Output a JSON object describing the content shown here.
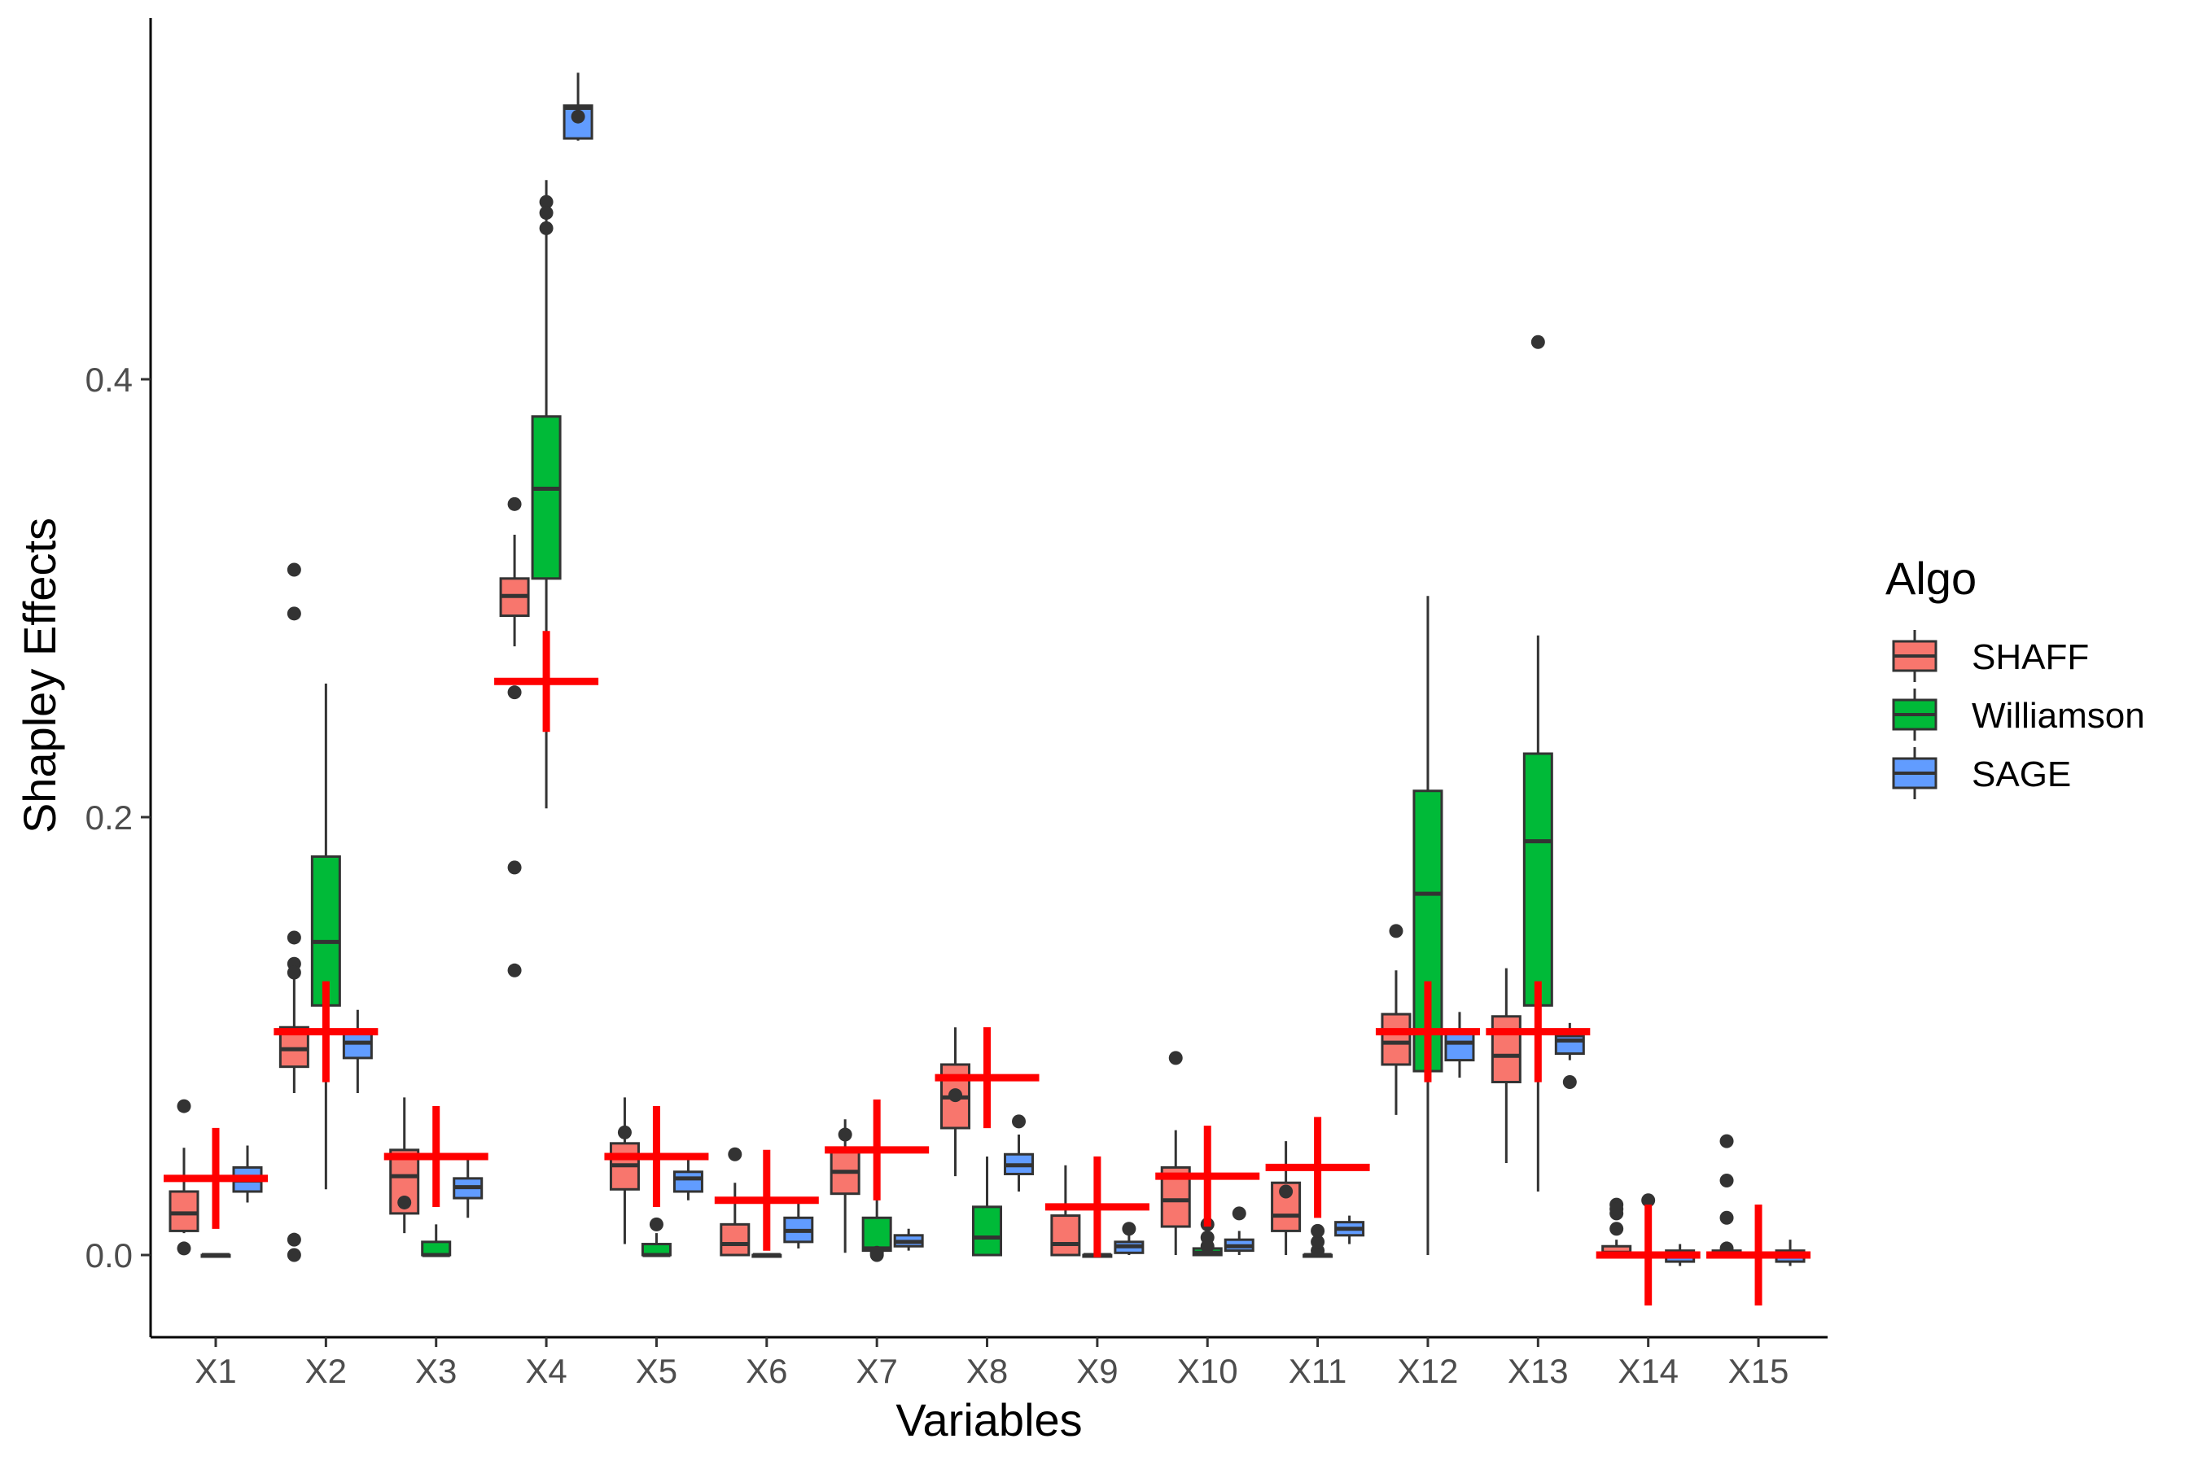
{
  "chart_data": {
    "type": "boxplot",
    "xlabel": "Variables",
    "ylabel": "Shapley Effects",
    "ylim": [
      -0.037,
      0.565
    ],
    "yticks": [
      0.0,
      0.2,
      0.4
    ],
    "ytick_labels": [
      "0.0",
      "0.2",
      "0.4"
    ],
    "categories": [
      "X1",
      "X2",
      "X3",
      "X4",
      "X5",
      "X6",
      "X7",
      "X8",
      "X9",
      "X10",
      "X11",
      "X12",
      "X13",
      "X14",
      "X15"
    ],
    "legend": {
      "title": "Algo",
      "placement": "right"
    },
    "grid": false,
    "series": [
      {
        "name": "SHAFF",
        "color": "#F8766D",
        "boxes": [
          {
            "low": 0.01,
            "q1": 0.011,
            "median": 0.019,
            "q3": 0.029,
            "high": 0.049,
            "outliers": [
              0.068,
              0.003
            ]
          },
          {
            "low": 0.074,
            "q1": 0.086,
            "median": 0.094,
            "q3": 0.104,
            "high": 0.13,
            "outliers": [
              0.145,
              0.133,
              0.129,
              0.293,
              0.313,
              0.0,
              0.007
            ]
          },
          {
            "low": 0.01,
            "q1": 0.019,
            "median": 0.036,
            "q3": 0.048,
            "high": 0.072,
            "outliers": [
              0.024
            ]
          },
          {
            "low": 0.278,
            "q1": 0.292,
            "median": 0.301,
            "q3": 0.309,
            "high": 0.329,
            "outliers": [
              0.343,
              0.257,
              0.177,
              0.13
            ]
          },
          {
            "low": 0.005,
            "q1": 0.03,
            "median": 0.041,
            "q3": 0.051,
            "high": 0.072,
            "outliers": [
              0.056
            ]
          },
          {
            "low": 0.0,
            "q1": 0.0,
            "median": 0.005,
            "q3": 0.014,
            "high": 0.033,
            "outliers": [
              0.046
            ]
          },
          {
            "low": 0.001,
            "q1": 0.028,
            "median": 0.038,
            "q3": 0.048,
            "high": 0.062,
            "outliers": [
              0.055
            ]
          },
          {
            "low": 0.036,
            "q1": 0.058,
            "median": 0.072,
            "q3": 0.087,
            "high": 0.104,
            "outliers": [
              0.073
            ]
          },
          {
            "low": 0.0,
            "q1": 0.0,
            "median": 0.005,
            "q3": 0.018,
            "high": 0.041,
            "outliers": []
          },
          {
            "low": 0.0,
            "q1": 0.013,
            "median": 0.025,
            "q3": 0.04,
            "high": 0.057,
            "outliers": [
              0.09
            ]
          },
          {
            "low": 0.0,
            "q1": 0.011,
            "median": 0.018,
            "q3": 0.033,
            "high": 0.052,
            "outliers": [
              0.029
            ]
          },
          {
            "low": 0.064,
            "q1": 0.087,
            "median": 0.097,
            "q3": 0.11,
            "high": 0.13,
            "outliers": [
              0.148
            ]
          },
          {
            "low": 0.042,
            "q1": 0.079,
            "median": 0.091,
            "q3": 0.109,
            "high": 0.131,
            "outliers": []
          },
          {
            "low": 0.0,
            "q1": 0.0,
            "median": 0.001,
            "q3": 0.004,
            "high": 0.007,
            "outliers": [
              0.012,
              0.019,
              0.023,
              0.021
            ]
          },
          {
            "low": 0.0,
            "q1": 0.0,
            "median": 0.0,
            "q3": 0.002,
            "high": 0.005,
            "outliers": [
              0.003,
              0.017,
              0.034,
              0.052
            ]
          }
        ]
      },
      {
        "name": "Williamson",
        "color": "#00BA38",
        "boxes": [
          {
            "low": 0.0,
            "q1": 0.0,
            "median": 0.0,
            "q3": 0.0,
            "high": 0.0,
            "outliers": []
          },
          {
            "low": 0.03,
            "q1": 0.114,
            "median": 0.143,
            "q3": 0.182,
            "high": 0.261,
            "outliers": []
          },
          {
            "low": 0.0,
            "q1": 0.0,
            "median": 0.0,
            "q3": 0.006,
            "high": 0.014,
            "outliers": []
          },
          {
            "low": 0.204,
            "q1": 0.309,
            "median": 0.35,
            "q3": 0.383,
            "high": 0.491,
            "outliers": [
              0.469,
              0.481,
              0.476
            ]
          },
          {
            "low": 0.0,
            "q1": 0.0,
            "median": 0.0,
            "q3": 0.005,
            "high": 0.01,
            "outliers": [
              0.014
            ]
          },
          {
            "low": 0.0,
            "q1": 0.0,
            "median": 0.0,
            "q3": 0.0,
            "high": 0.0,
            "outliers": []
          },
          {
            "low": 0.0,
            "q1": 0.002,
            "median": 0.003,
            "q3": 0.017,
            "high": 0.03,
            "outliers": [
              0.0,
              0.001
            ]
          },
          {
            "low": 0.0,
            "q1": 0.0,
            "median": 0.008,
            "q3": 0.022,
            "high": 0.045,
            "outliers": []
          },
          {
            "low": 0.0,
            "q1": 0.0,
            "median": 0.0,
            "q3": 0.0,
            "high": 0.0,
            "outliers": []
          },
          {
            "low": 0.0,
            "q1": 0.0,
            "median": 0.001,
            "q3": 0.003,
            "high": 0.005,
            "outliers": [
              0.004,
              0.008,
              0.014
            ]
          },
          {
            "low": 0.0,
            "q1": 0.0,
            "median": 0.0,
            "q3": 0.0,
            "high": 0.0,
            "outliers": [
              0.002,
              0.006,
              0.011
            ]
          },
          {
            "low": 0.0,
            "q1": 0.084,
            "median": 0.165,
            "q3": 0.212,
            "high": 0.301,
            "outliers": []
          },
          {
            "low": 0.029,
            "q1": 0.114,
            "median": 0.189,
            "q3": 0.229,
            "high": 0.283,
            "outliers": [
              0.417
            ]
          },
          {
            "low": 0.0,
            "q1": 0.0,
            "median": 0.0,
            "q3": 0.0,
            "high": 0.0,
            "outliers": [
              0.025
            ]
          },
          {
            "low": 0.0,
            "q1": 0.0,
            "median": 0.0,
            "q3": 0.0,
            "high": 0.0,
            "outliers": []
          }
        ]
      },
      {
        "name": "SAGE",
        "color": "#619CFF",
        "boxes": [
          {
            "low": 0.024,
            "q1": 0.029,
            "median": 0.034,
            "q3": 0.04,
            "high": 0.05,
            "outliers": []
          },
          {
            "low": 0.074,
            "q1": 0.09,
            "median": 0.097,
            "q3": 0.101,
            "high": 0.112,
            "outliers": []
          },
          {
            "low": 0.017,
            "q1": 0.026,
            "median": 0.031,
            "q3": 0.035,
            "high": 0.044,
            "outliers": []
          },
          {
            "low": 0.509,
            "q1": 0.51,
            "median": 0.524,
            "q3": 0.525,
            "high": 0.54,
            "outliers": [
              0.52
            ]
          },
          {
            "low": 0.025,
            "q1": 0.029,
            "median": 0.035,
            "q3": 0.038,
            "high": 0.044,
            "outliers": []
          },
          {
            "low": 0.003,
            "q1": 0.006,
            "median": 0.011,
            "q3": 0.017,
            "high": 0.025,
            "outliers": []
          },
          {
            "low": 0.002,
            "q1": 0.004,
            "median": 0.006,
            "q3": 0.009,
            "high": 0.012,
            "outliers": []
          },
          {
            "low": 0.029,
            "q1": 0.037,
            "median": 0.041,
            "q3": 0.046,
            "high": 0.055,
            "outliers": [
              0.061
            ]
          },
          {
            "low": 0.0,
            "q1": 0.001,
            "median": 0.004,
            "q3": 0.006,
            "high": 0.009,
            "outliers": [
              0.012
            ]
          },
          {
            "low": 0.0,
            "q1": 0.002,
            "median": 0.004,
            "q3": 0.007,
            "high": 0.011,
            "outliers": [
              0.019
            ]
          },
          {
            "low": 0.005,
            "q1": 0.009,
            "median": 0.012,
            "q3": 0.015,
            "high": 0.018,
            "outliers": []
          },
          {
            "low": 0.081,
            "q1": 0.089,
            "median": 0.097,
            "q3": 0.102,
            "high": 0.111,
            "outliers": []
          },
          {
            "low": 0.089,
            "q1": 0.092,
            "median": 0.098,
            "q3": 0.1,
            "high": 0.106,
            "outliers": [
              0.079
            ]
          },
          {
            "low": -0.005,
            "q1": -0.003,
            "median": 0.0,
            "q3": 0.002,
            "high": 0.005,
            "outliers": []
          },
          {
            "low": -0.005,
            "q1": -0.003,
            "median": 0.0,
            "q3": 0.002,
            "high": 0.007,
            "outliers": []
          }
        ]
      }
    ],
    "true_values": {
      "color": "#FF0000",
      "values": [
        0.035,
        0.102,
        0.045,
        0.262,
        0.045,
        0.025,
        0.048,
        0.081,
        0.022,
        0.036,
        0.04,
        0.102,
        0.102,
        0.0,
        0.0
      ]
    }
  }
}
